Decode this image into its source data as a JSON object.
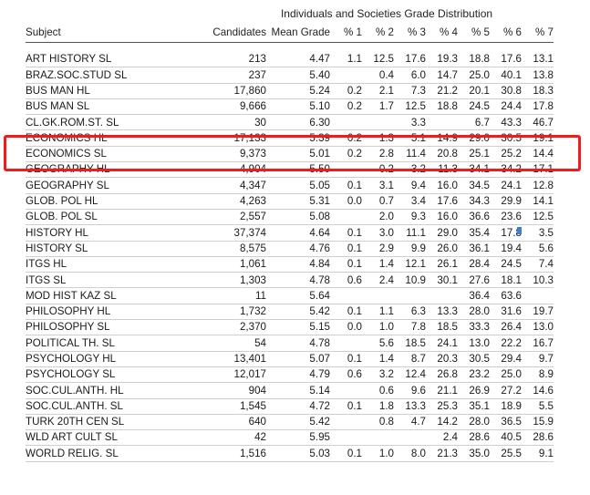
{
  "table": {
    "group_title": "Individuals and Societies Grade Distribution",
    "headers": {
      "subject": "Subject",
      "candidates": "Candidates",
      "mean_grade": "Mean Grade",
      "p1": "% 1",
      "p2": "% 2",
      "p3": "% 3",
      "p4": "% 4",
      "p5": "% 5",
      "p6": "% 6",
      "p7": "% 7"
    },
    "rows": [
      {
        "subject": "ART HISTORY SL",
        "candidates": "213",
        "mean": "4.47",
        "p1": "1.1",
        "p2": "12.5",
        "p3": "17.6",
        "p4": "19.3",
        "p5": "18.8",
        "p6": "17.6",
        "p7": "13.1"
      },
      {
        "subject": "BRAZ.SOC.STUD SL",
        "candidates": "237",
        "mean": "5.40",
        "p1": "",
        "p2": "0.4",
        "p3": "6.0",
        "p4": "14.7",
        "p5": "25.0",
        "p6": "40.1",
        "p7": "13.8"
      },
      {
        "subject": "BUS MAN HL",
        "candidates": "17,860",
        "mean": "5.24",
        "p1": "0.2",
        "p2": "2.1",
        "p3": "7.3",
        "p4": "21.2",
        "p5": "20.1",
        "p6": "30.8",
        "p7": "18.3"
      },
      {
        "subject": "BUS MAN SL",
        "candidates": "9,666",
        "mean": "5.10",
        "p1": "0.2",
        "p2": "1.7",
        "p3": "12.5",
        "p4": "18.8",
        "p5": "24.5",
        "p6": "24.4",
        "p7": "17.8"
      },
      {
        "subject": "CL.GK.ROM.ST. SL",
        "candidates": "30",
        "mean": "6.30",
        "p1": "",
        "p2": "",
        "p3": "3.3",
        "p4": "",
        "p5": "6.7",
        "p6": "43.3",
        "p7": "46.7"
      },
      {
        "subject": "ECONOMICS HL",
        "candidates": "17,133",
        "mean": "5.39",
        "p1": "0.2",
        "p2": "1.3",
        "p3": "5.1",
        "p4": "14.9",
        "p5": "29.0",
        "p6": "30.5",
        "p7": "19.1"
      },
      {
        "subject": "ECONOMICS SL",
        "candidates": "9,373",
        "mean": "5.01",
        "p1": "0.2",
        "p2": "2.8",
        "p3": "11.4",
        "p4": "20.8",
        "p5": "25.1",
        "p6": "25.2",
        "p7": "14.4"
      },
      {
        "subject": "GEOGRAPHY HL",
        "candidates": "4,904",
        "mean": "5.50",
        "p1": "",
        "p2": "0.2",
        "p3": "3.2",
        "p4": "11.3",
        "p5": "34.1",
        "p6": "34.2",
        "p7": "17.1"
      },
      {
        "subject": "GEOGRAPHY SL",
        "candidates": "4,347",
        "mean": "5.05",
        "p1": "0.1",
        "p2": "3.1",
        "p3": "9.4",
        "p4": "16.0",
        "p5": "34.5",
        "p6": "24.1",
        "p7": "12.8"
      },
      {
        "subject": "GLOB. POL HL",
        "candidates": "4,263",
        "mean": "5.31",
        "p1": "0.0",
        "p2": "0.7",
        "p3": "3.4",
        "p4": "17.6",
        "p5": "34.3",
        "p6": "29.9",
        "p7": "14.1"
      },
      {
        "subject": "GLOB. POL SL",
        "candidates": "2,557",
        "mean": "5.08",
        "p1": "",
        "p2": "2.0",
        "p3": "9.3",
        "p4": "16.0",
        "p5": "36.6",
        "p6": "23.6",
        "p7": "12.5"
      },
      {
        "subject": "HISTORY HL",
        "candidates": "37,374",
        "mean": "4.64",
        "p1": "0.1",
        "p2": "3.0",
        "p3": "11.1",
        "p4": "29.0",
        "p5": "35.4",
        "p6": "17.8",
        "p7": "3.5"
      },
      {
        "subject": "HISTORY SL",
        "candidates": "8,575",
        "mean": "4.76",
        "p1": "0.1",
        "p2": "2.9",
        "p3": "9.9",
        "p4": "26.0",
        "p5": "36.1",
        "p6": "19.4",
        "p7": "5.6"
      },
      {
        "subject": "ITGS HL",
        "candidates": "1,061",
        "mean": "4.84",
        "p1": "0.1",
        "p2": "1.4",
        "p3": "12.1",
        "p4": "26.1",
        "p5": "28.4",
        "p6": "24.5",
        "p7": "7.4"
      },
      {
        "subject": "ITGS SL",
        "candidates": "1,303",
        "mean": "4.78",
        "p1": "0.6",
        "p2": "2.4",
        "p3": "10.9",
        "p4": "30.1",
        "p5": "27.6",
        "p6": "18.1",
        "p7": "10.3"
      },
      {
        "subject": "MOD HIST KAZ SL",
        "candidates": "11",
        "mean": "5.64",
        "p1": "",
        "p2": "",
        "p3": "",
        "p4": "",
        "p5": "36.4",
        "p6": "63.6",
        "p7": ""
      },
      {
        "subject": "PHILOSOPHY HL",
        "candidates": "1,732",
        "mean": "5.42",
        "p1": "0.1",
        "p2": "1.1",
        "p3": "6.3",
        "p4": "13.3",
        "p5": "28.0",
        "p6": "31.6",
        "p7": "19.7"
      },
      {
        "subject": "PHILOSOPHY SL",
        "candidates": "2,370",
        "mean": "5.15",
        "p1": "0.0",
        "p2": "1.0",
        "p3": "7.8",
        "p4": "18.5",
        "p5": "33.3",
        "p6": "26.4",
        "p7": "13.0"
      },
      {
        "subject": "POLITICAL TH. SL",
        "candidates": "54",
        "mean": "4.78",
        "p1": "",
        "p2": "5.6",
        "p3": "18.5",
        "p4": "24.1",
        "p5": "13.0",
        "p6": "22.2",
        "p7": "16.7"
      },
      {
        "subject": "PSYCHOLOGY HL",
        "candidates": "13,401",
        "mean": "5.07",
        "p1": "0.1",
        "p2": "1.4",
        "p3": "8.7",
        "p4": "20.3",
        "p5": "30.5",
        "p6": "29.4",
        "p7": "9.7"
      },
      {
        "subject": "PSYCHOLOGY SL",
        "candidates": "12,017",
        "mean": "4.79",
        "p1": "0.6",
        "p2": "3.2",
        "p3": "12.4",
        "p4": "26.8",
        "p5": "23.2",
        "p6": "25.0",
        "p7": "8.9"
      },
      {
        "subject": "SOC.CUL.ANTH. HL",
        "candidates": "904",
        "mean": "5.14",
        "p1": "",
        "p2": "0.6",
        "p3": "9.6",
        "p4": "21.1",
        "p5": "26.9",
        "p6": "27.2",
        "p7": "14.6"
      },
      {
        "subject": "SOC.CUL.ANTH. SL",
        "candidates": "1,545",
        "mean": "4.72",
        "p1": "0.1",
        "p2": "1.8",
        "p3": "13.3",
        "p4": "25.3",
        "p5": "35.1",
        "p6": "18.9",
        "p7": "5.5"
      },
      {
        "subject": "TURK 20TH CEN SL",
        "candidates": "640",
        "mean": "5.42",
        "p1": "",
        "p2": "0.8",
        "p3": "4.7",
        "p4": "14.2",
        "p5": "28.0",
        "p6": "36.5",
        "p7": "15.9"
      },
      {
        "subject": "WLD ART CULT SL",
        "candidates": "42",
        "mean": "5.95",
        "p1": "",
        "p2": "",
        "p3": "",
        "p4": "2.4",
        "p5": "28.6",
        "p6": "40.5",
        "p7": "28.6"
      },
      {
        "subject": "WORLD RELIG. SL",
        "candidates": "1,516",
        "mean": "5.03",
        "p1": "0.1",
        "p2": "1.0",
        "p3": "8.0",
        "p4": "21.3",
        "p5": "35.0",
        "p6": "25.5",
        "p7": "9.1"
      }
    ]
  },
  "highlight": {
    "color": "#ee1c1c",
    "rows": [
      "ECONOMICS HL",
      "ECONOMICS SL"
    ]
  },
  "cursor": {
    "color": "#3d7fd6"
  }
}
